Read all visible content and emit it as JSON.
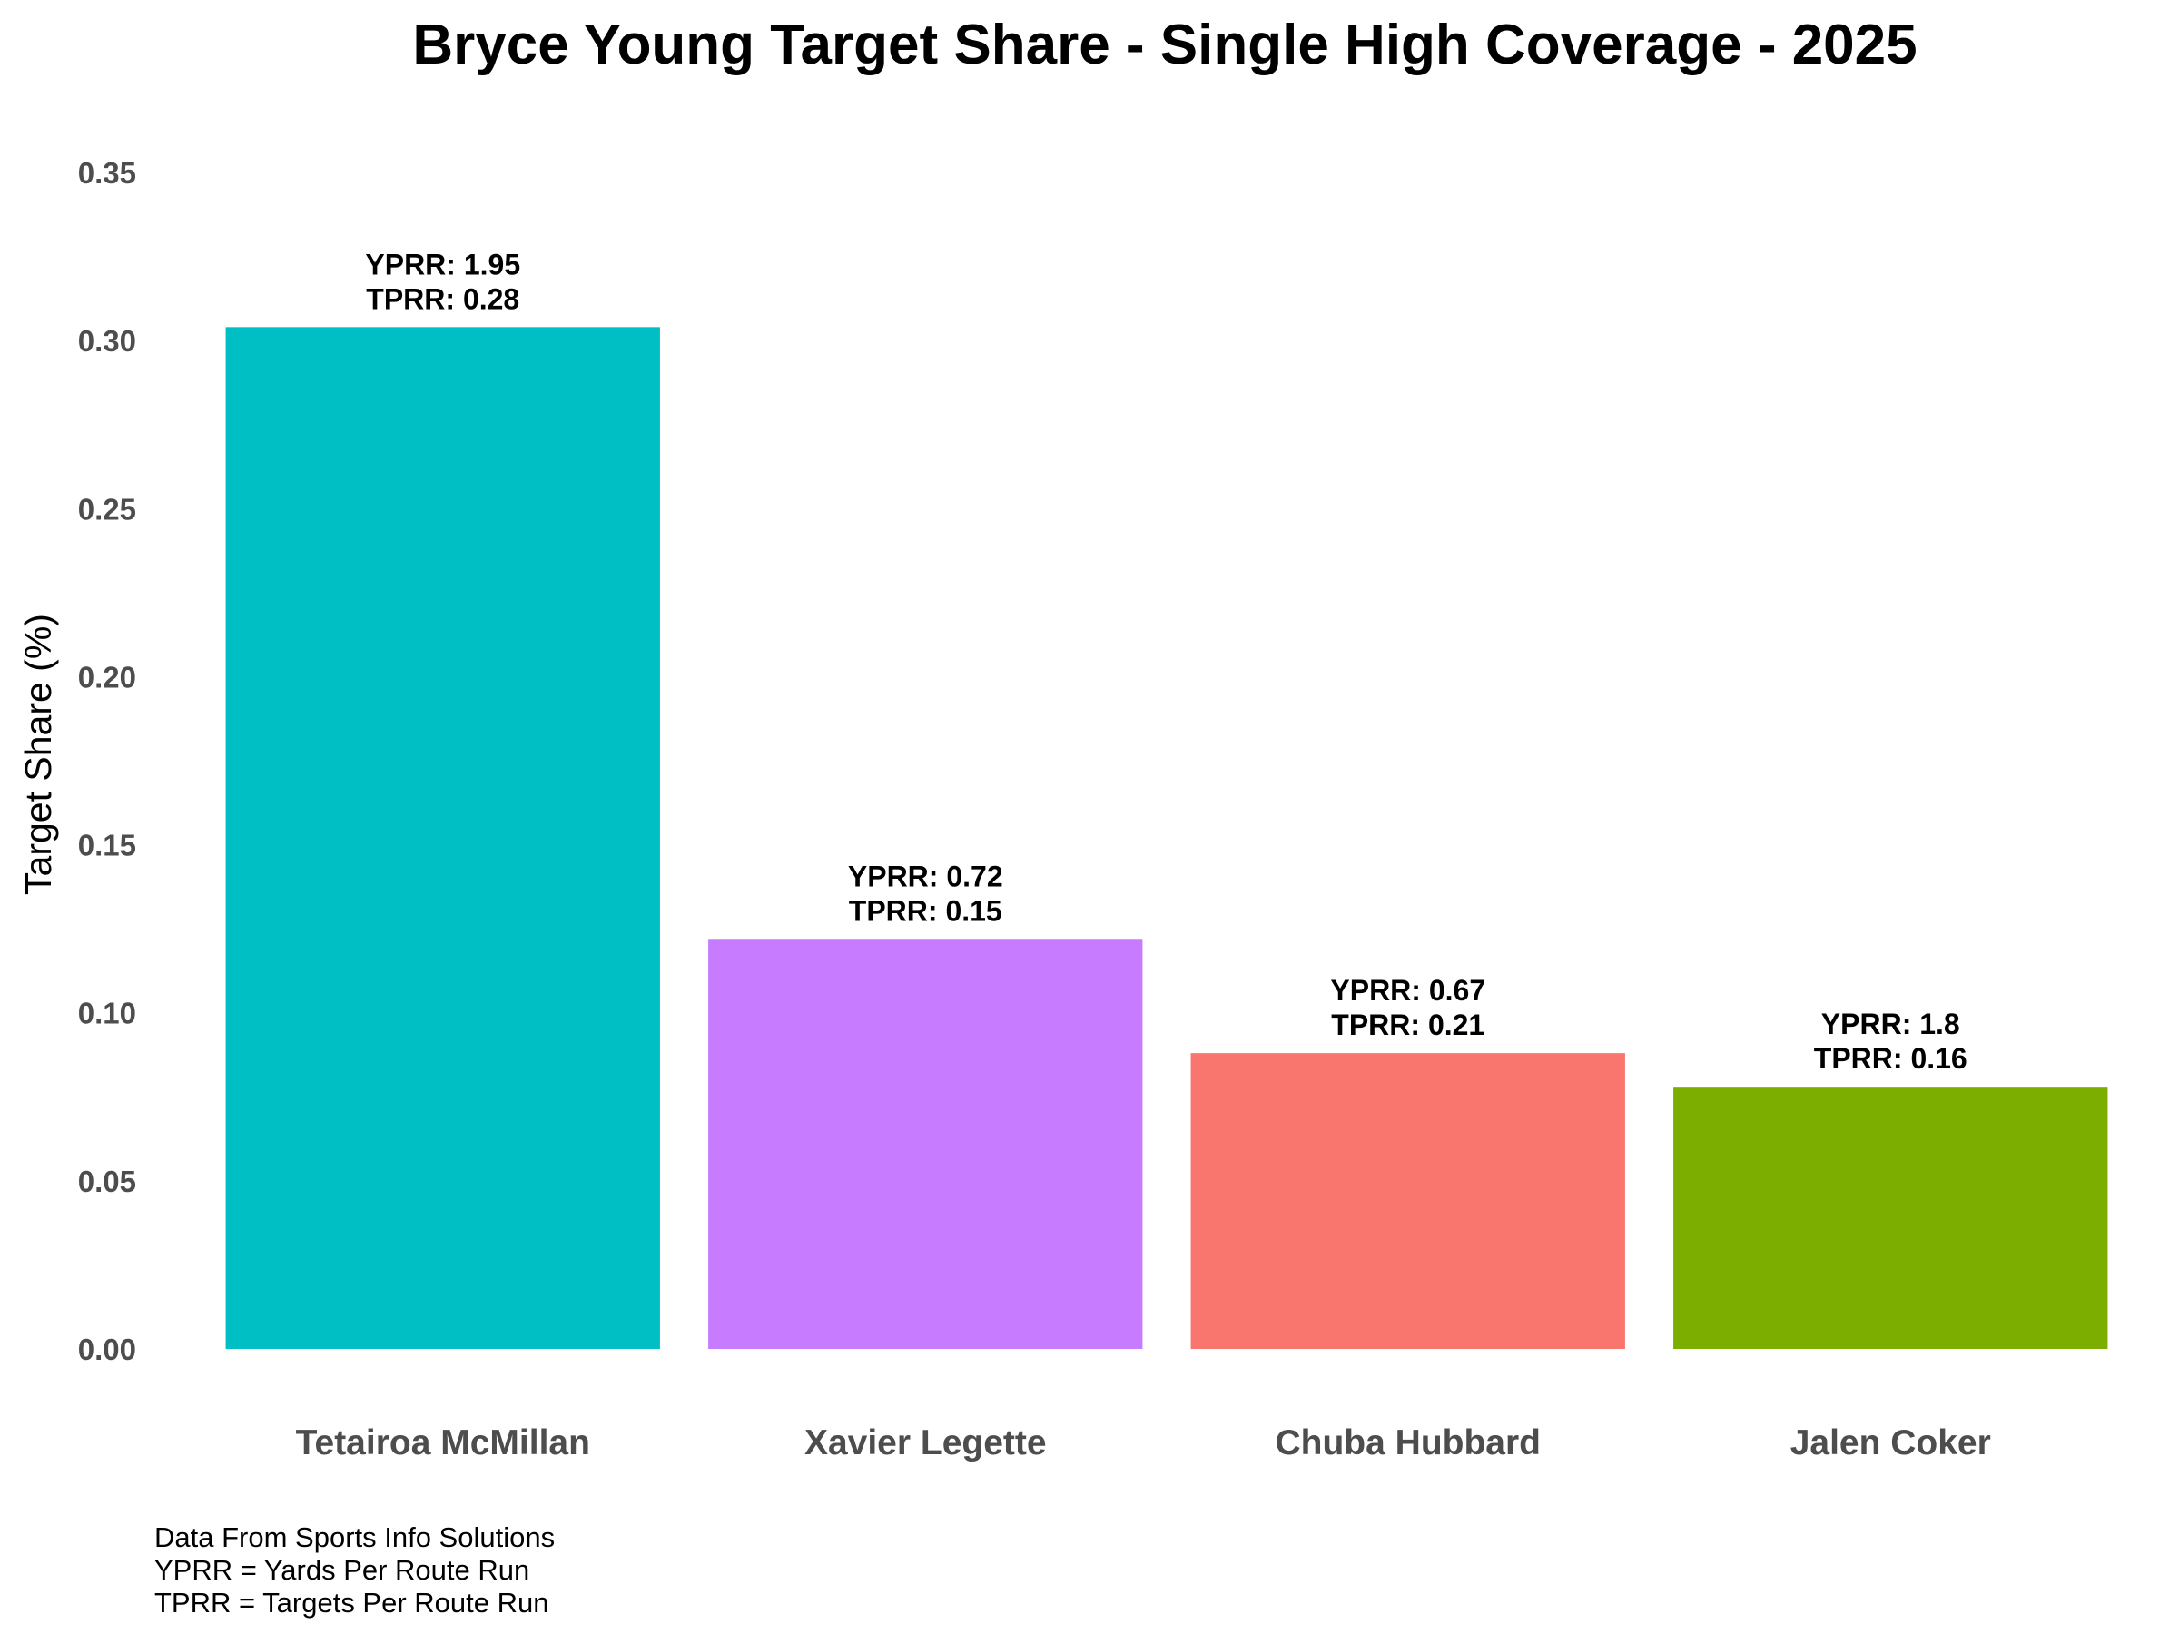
{
  "chart_data": {
    "type": "bar",
    "title": "Bryce Young Target Share - Single High Coverage - 2025",
    "ylabel": "Target Share (%)",
    "xlabel": "",
    "ylim": [
      0,
      0.35
    ],
    "yticks": [
      "0.00",
      "0.05",
      "0.10",
      "0.15",
      "0.20",
      "0.25",
      "0.30",
      "0.35"
    ],
    "grid": false,
    "legend": "none",
    "categories": [
      "Tetairoa McMillan",
      "Xavier Legette",
      "Chuba Hubbard",
      "Jalen Coker"
    ],
    "values": [
      0.304,
      0.122,
      0.088,
      0.078
    ],
    "colors": [
      "#00BFC4",
      "#C77CFF",
      "#F8766D",
      "#7CAE00"
    ],
    "annotations": [
      [
        "YPRR: 1.95",
        "TPRR: 0.28"
      ],
      [
        "YPRR: 0.72",
        "TPRR: 0.15"
      ],
      [
        "YPRR: 0.67",
        "TPRR: 0.21"
      ],
      [
        "YPRR: 1.8",
        "TPRR: 0.16"
      ]
    ]
  },
  "caption": {
    "lines": [
      "Data From Sports Info Solutions",
      "YPRR = Yards Per Route Run",
      "TPRR = Targets Per Route Run"
    ]
  }
}
